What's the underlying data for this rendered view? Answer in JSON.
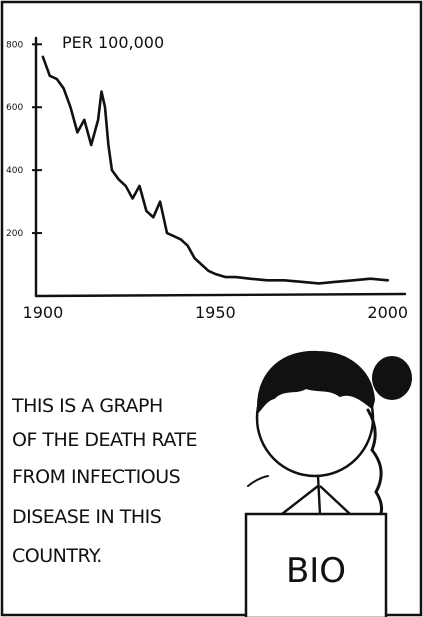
{
  "chart_data": {
    "type": "line",
    "title": "",
    "unit_label": "PER 100,000",
    "xlabel": "",
    "ylabel": "",
    "xlim": [
      1898,
      2005
    ],
    "ylim": [
      0,
      820
    ],
    "x_ticks": [
      1900,
      1950,
      2000
    ],
    "x_tick_labels": [
      "1900",
      "1950",
      "2000"
    ],
    "y_ticks": [
      200,
      400,
      600,
      800
    ],
    "y_tick_labels": [
      "200",
      "400",
      "600",
      "800"
    ],
    "grid": false,
    "series": [
      {
        "x": [
          1900,
          1902,
          1904,
          1906,
          1908,
          1910,
          1912,
          1914,
          1916,
          1917,
          1918,
          1919,
          1920,
          1922,
          1924,
          1926,
          1928,
          1930,
          1932,
          1934,
          1936,
          1938,
          1940,
          1942,
          1944,
          1946,
          1948,
          1950,
          1953,
          1956,
          1960,
          1965,
          1970,
          1975,
          1980,
          1985,
          1990,
          1995,
          2000
        ],
        "y": [
          760,
          700,
          690,
          660,
          600,
          520,
          560,
          480,
          560,
          650,
          600,
          480,
          400,
          370,
          350,
          310,
          350,
          270,
          250,
          300,
          200,
          190,
          180,
          160,
          120,
          100,
          80,
          70,
          60,
          60,
          55,
          50,
          50,
          45,
          40,
          45,
          50,
          55,
          50
        ]
      }
    ]
  },
  "caption": {
    "lines": [
      "THIS IS A GRAPH",
      "OF THE DEATH RATE",
      "FROM INFECTIOUS",
      "DISEASE IN THIS",
      "COUNTRY."
    ]
  },
  "sign": {
    "text": "BIO"
  }
}
